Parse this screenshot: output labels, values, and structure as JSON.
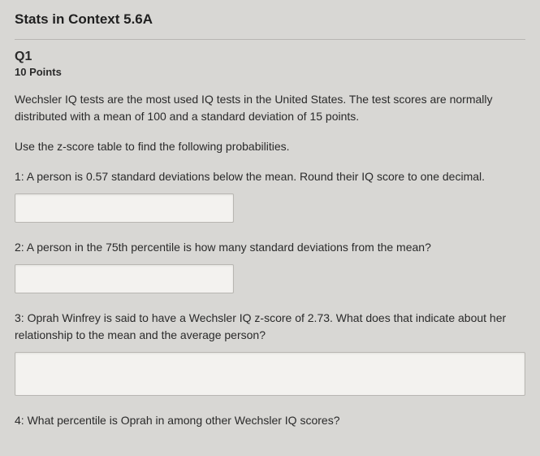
{
  "page": {
    "title": "Stats in Context 5.6A",
    "background_color": "#d8d7d4",
    "text_color": "#2a2a2a",
    "input_bg": "#f3f2ef",
    "border_color": "#b8b6b2"
  },
  "question": {
    "number": "Q1",
    "points": "10 Points",
    "intro1": "Wechsler IQ tests are the most used IQ tests in the United States. The test scores are normally distributed with a mean of 100 and a standard deviation of 15 points.",
    "intro2": "Use the z-score table to find the following probabilities.",
    "parts": {
      "p1": "1: A person is 0.57 standard deviations below the mean.  Round their IQ score to one decimal.",
      "p2": "2: A person in the 75th percentile is how many standard deviations from the mean?",
      "p3": "3: Oprah Winfrey is said to have a Wechsler IQ z-score of 2.73.  What does that indicate about her relationship to the mean and the average person?",
      "p4": "4: What percentile is Oprah in among other Wechsler IQ scores?"
    },
    "answers": {
      "a1": "",
      "a2": "",
      "a3": "",
      "a4": ""
    }
  }
}
